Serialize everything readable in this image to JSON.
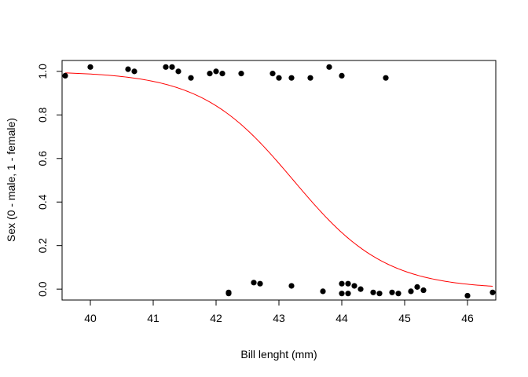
{
  "chart_data": {
    "type": "scatter",
    "xlabel": "Bill lenght (mm)",
    "ylabel": "Sex (0 - male, 1 - female)",
    "xlim": [
      39.55,
      46.45
    ],
    "ylim": [
      -0.05,
      1.05
    ],
    "x_ticks": [
      {
        "value": 40,
        "label": "40"
      },
      {
        "value": 41,
        "label": "41"
      },
      {
        "value": 42,
        "label": "42"
      },
      {
        "value": 43,
        "label": "43"
      },
      {
        "value": 44,
        "label": "44"
      },
      {
        "value": 45,
        "label": "45"
      },
      {
        "value": 46,
        "label": "46"
      }
    ],
    "y_ticks": [
      {
        "value": 0,
        "label": "0.0"
      },
      {
        "value": 0.2,
        "label": "0.2"
      },
      {
        "value": 0.4,
        "label": "0.4"
      },
      {
        "value": 0.6,
        "label": "0.6"
      },
      {
        "value": 0.8,
        "label": "0.8"
      },
      {
        "value": 1,
        "label": "1.0"
      }
    ],
    "grid": false,
    "legend": false,
    "points": {
      "color": "#000000",
      "x": [
        39.6,
        40.0,
        40.6,
        40.7,
        41.2,
        41.3,
        41.4,
        41.6,
        41.9,
        42.0,
        42.1,
        42.4,
        42.9,
        43.0,
        43.2,
        43.5,
        43.8,
        44.0,
        44.7,
        42.2,
        42.2,
        42.6,
        42.7,
        43.2,
        43.7,
        44.0,
        44.0,
        44.1,
        44.1,
        44.2,
        44.3,
        44.5,
        44.6,
        44.8,
        44.9,
        45.1,
        45.2,
        45.3,
        46.0,
        46.4
      ],
      "y": [
        0.98,
        1.02,
        1.01,
        1.0,
        1.02,
        1.02,
        1.0,
        0.97,
        0.99,
        1.0,
        0.99,
        0.99,
        0.99,
        0.97,
        0.97,
        0.97,
        1.02,
        0.98,
        0.97,
        -0.02,
        -0.015,
        0.03,
        0.025,
        0.015,
        -0.01,
        -0.02,
        0.025,
        -0.02,
        0.025,
        0.015,
        0.0,
        -0.015,
        -0.02,
        -0.015,
        -0.02,
        -0.01,
        0.01,
        -0.005,
        -0.03,
        -0.015
      ]
    },
    "curve": {
      "type": "logistic",
      "color": "#ff0000",
      "x_range": [
        39.6,
        46.4
      ],
      "midpoint": 43.23,
      "slope": -1.36
    }
  }
}
